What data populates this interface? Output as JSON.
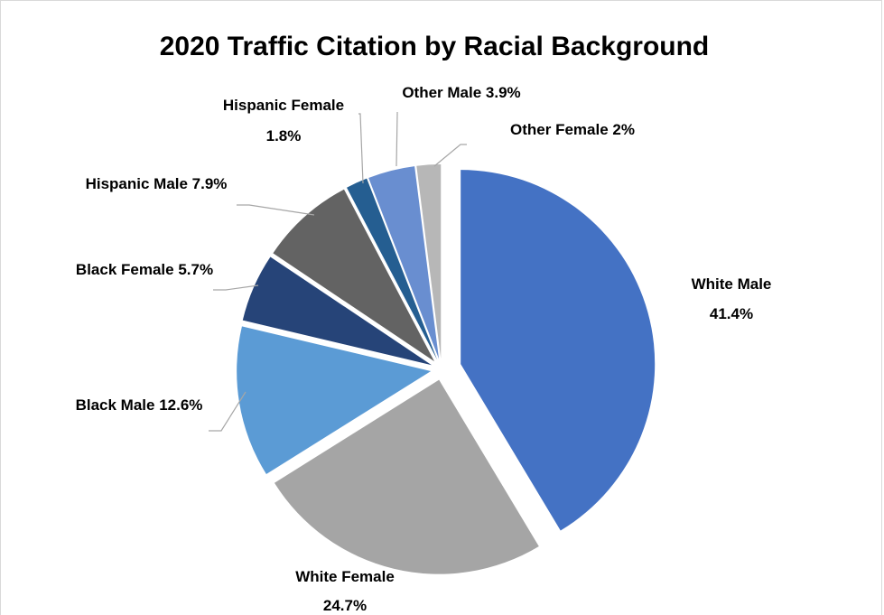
{
  "chart_data": {
    "type": "pie",
    "title": "2020 Traffic Citation by Racial Background",
    "slices": [
      {
        "name": "White Male",
        "value": 41.4,
        "label_lines": [
          "White Male",
          "41.4%"
        ],
        "color": "#4472c4"
      },
      {
        "name": "White Female",
        "value": 24.7,
        "label_lines": [
          "White Female",
          "24.7%"
        ],
        "color": "#a5a5a5"
      },
      {
        "name": "Black Male",
        "value": 12.6,
        "label_lines": [
          "Black Male 12.6%"
        ],
        "color": "#5b9bd5"
      },
      {
        "name": "Black Female",
        "value": 5.7,
        "label_lines": [
          "Black Female 5.7%"
        ],
        "color": "#264478"
      },
      {
        "name": "Hispanic Male",
        "value": 7.9,
        "label_lines": [
          "Hispanic Male 7.9%"
        ],
        "color": "#636363"
      },
      {
        "name": "Hispanic Female",
        "value": 1.8,
        "label_lines": [
          "Hispanic Female",
          "1.8%"
        ],
        "color": "#255e91"
      },
      {
        "name": "Other Male",
        "value": 3.9,
        "label_lines": [
          "Other Male 3.9%"
        ],
        "color": "#698ed0"
      },
      {
        "name": "Other Female",
        "value": 2,
        "label_lines": [
          "Other Female 2%"
        ],
        "color": "#b7b7b7"
      }
    ],
    "exploded": true,
    "legend": "none"
  }
}
